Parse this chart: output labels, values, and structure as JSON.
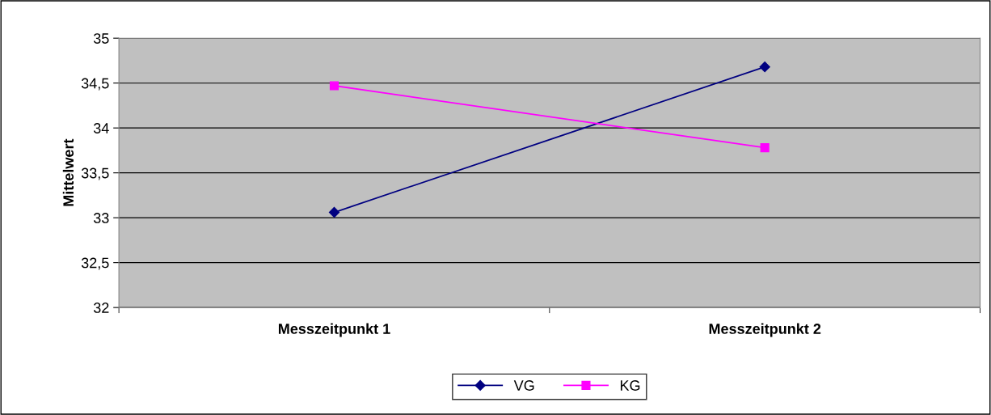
{
  "chart_data": {
    "type": "line",
    "ylabel": "Mittelwert",
    "categories": [
      "Messzeitpunkt 1",
      "Messzeitpunkt 2"
    ],
    "series": [
      {
        "name": "VG",
        "color": "#000080",
        "values": [
          33.06,
          34.68
        ],
        "marker": "diamond"
      },
      {
        "name": "KG",
        "color": "#ff00ff",
        "values": [
          34.47,
          33.78
        ],
        "marker": "square"
      }
    ],
    "ylim": [
      32,
      35
    ],
    "yticks": [
      32,
      {
        "value": 32.5,
        "label": "32,5"
      },
      33,
      {
        "value": 33.5,
        "label": "33,5"
      },
      34,
      {
        "value": 34.5,
        "label": "34,5"
      },
      35
    ],
    "grid": "y",
    "legend": "bottom",
    "line_style": "solid"
  }
}
